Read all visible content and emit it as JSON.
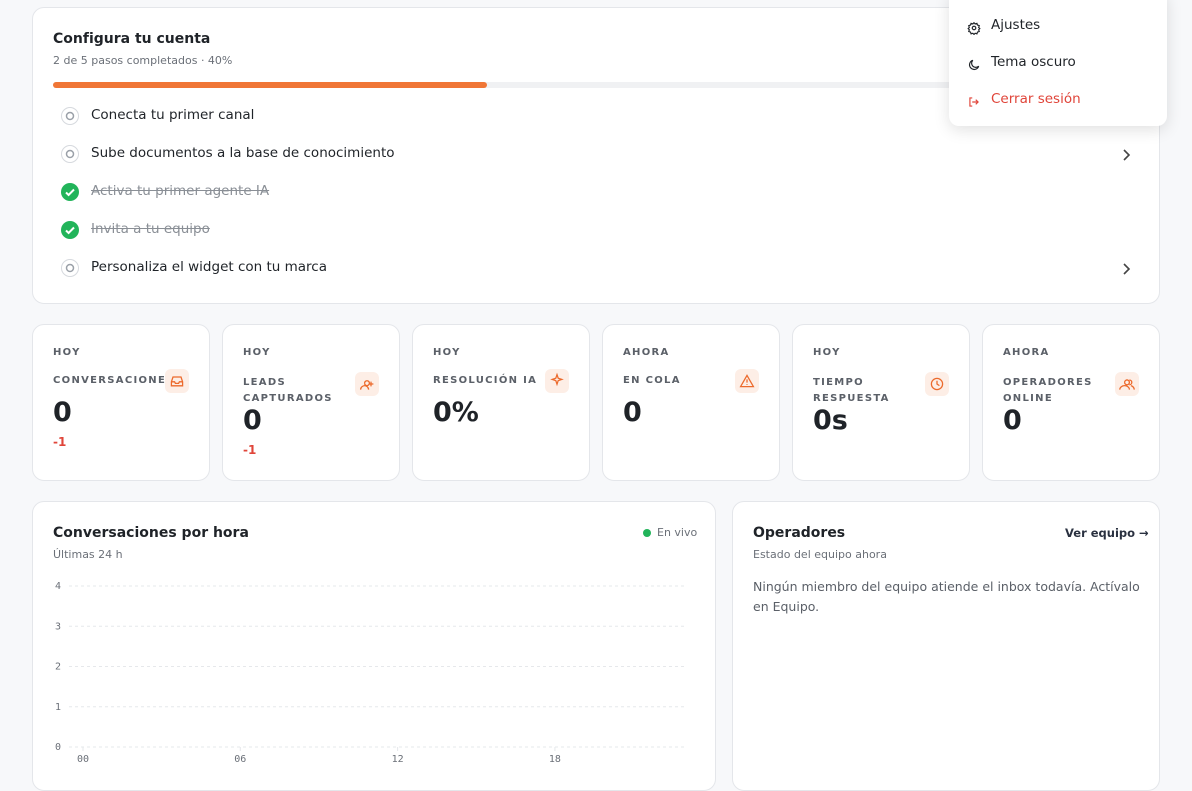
{
  "setup": {
    "title": "Configura tu cuenta",
    "subtitle": "2 de 5 pasos completados · 40%",
    "progress": 40,
    "steps": [
      {
        "label": "Conecta tu primer canal",
        "done": false
      },
      {
        "label": "Sube documentos a la base de conocimiento",
        "done": false
      },
      {
        "label": "Activa tu primer agente IA",
        "done": true
      },
      {
        "label": "Invita a tu equipo",
        "done": true
      },
      {
        "label": "Personaliza el widget con tu marca",
        "done": false
      }
    ]
  },
  "menu": {
    "items": [
      {
        "label": "Ajustes"
      },
      {
        "label": "Tema oscuro"
      },
      {
        "label": "Cerrar sesión",
        "danger": true
      }
    ]
  },
  "stats": [
    {
      "period": "HOY",
      "label": "CONVERSACIONES",
      "value": "0",
      "delta": "-1"
    },
    {
      "period": "HOY",
      "label": "LEADS CAPTURADOS",
      "value": "0",
      "delta": "-1"
    },
    {
      "period": "HOY",
      "label": "RESOLUCIÓN IA",
      "value": "0%"
    },
    {
      "period": "AHORA",
      "label": "EN COLA",
      "value": "0"
    },
    {
      "period": "HOY",
      "label": "TIEMPO RESPUESTA",
      "value": "0s"
    },
    {
      "period": "AHORA",
      "label": "OPERADORES ONLINE",
      "value": "0"
    }
  ],
  "chart_data": {
    "type": "line",
    "title": "Conversaciones por hora",
    "subtitle": "Últimas 24 h",
    "status": "En vivo",
    "xlim": [
      0,
      23
    ],
    "xticks": [
      {
        "value": 0,
        "label": "00"
      },
      {
        "value": 6,
        "label": "06"
      },
      {
        "value": 12,
        "label": "12"
      },
      {
        "value": 18,
        "label": "18"
      }
    ],
    "ylim": [
      0,
      4
    ],
    "yticks": [
      0,
      1,
      2,
      3,
      4
    ],
    "grid": true
  },
  "operators": {
    "title": "Operadores",
    "link": "Ver equipo",
    "subtitle": "Estado del equipo ahora",
    "empty": "Ningún miembro del equipo atiende el inbox todavía. Actívalo en Equipo."
  }
}
